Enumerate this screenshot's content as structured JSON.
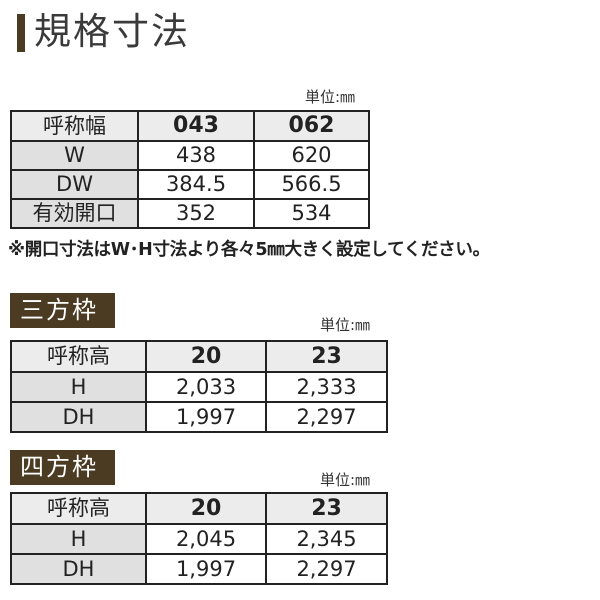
{
  "title": "規格寸法",
  "unit_label": "単位:㎜",
  "width_table": {
    "header": [
      "呼称幅",
      "043",
      "062"
    ],
    "rows": [
      [
        "W",
        "438",
        "620"
      ],
      [
        "DW",
        "384.5",
        "566.5"
      ],
      [
        "有効開口",
        "352",
        "534"
      ]
    ]
  },
  "note": "※開口寸法はW･H寸法より各々5㎜大きく設定してください。",
  "sections": [
    {
      "label": "三方枠",
      "unit_label": "単位:㎜",
      "header": [
        "呼称高",
        "20",
        "23"
      ],
      "rows": [
        [
          "H",
          "2,033",
          "2,333"
        ],
        [
          "DH",
          "1,997",
          "2,297"
        ]
      ]
    },
    {
      "label": "四方枠",
      "unit_label": "単位:㎜",
      "header": [
        "呼称高",
        "20",
        "23"
      ],
      "rows": [
        [
          "H",
          "2,045",
          "2,345"
        ],
        [
          "DH",
          "1,997",
          "2,297"
        ]
      ]
    }
  ],
  "colors": {
    "accent": "#4b3b22",
    "label_bg": "#e0e0e0"
  }
}
